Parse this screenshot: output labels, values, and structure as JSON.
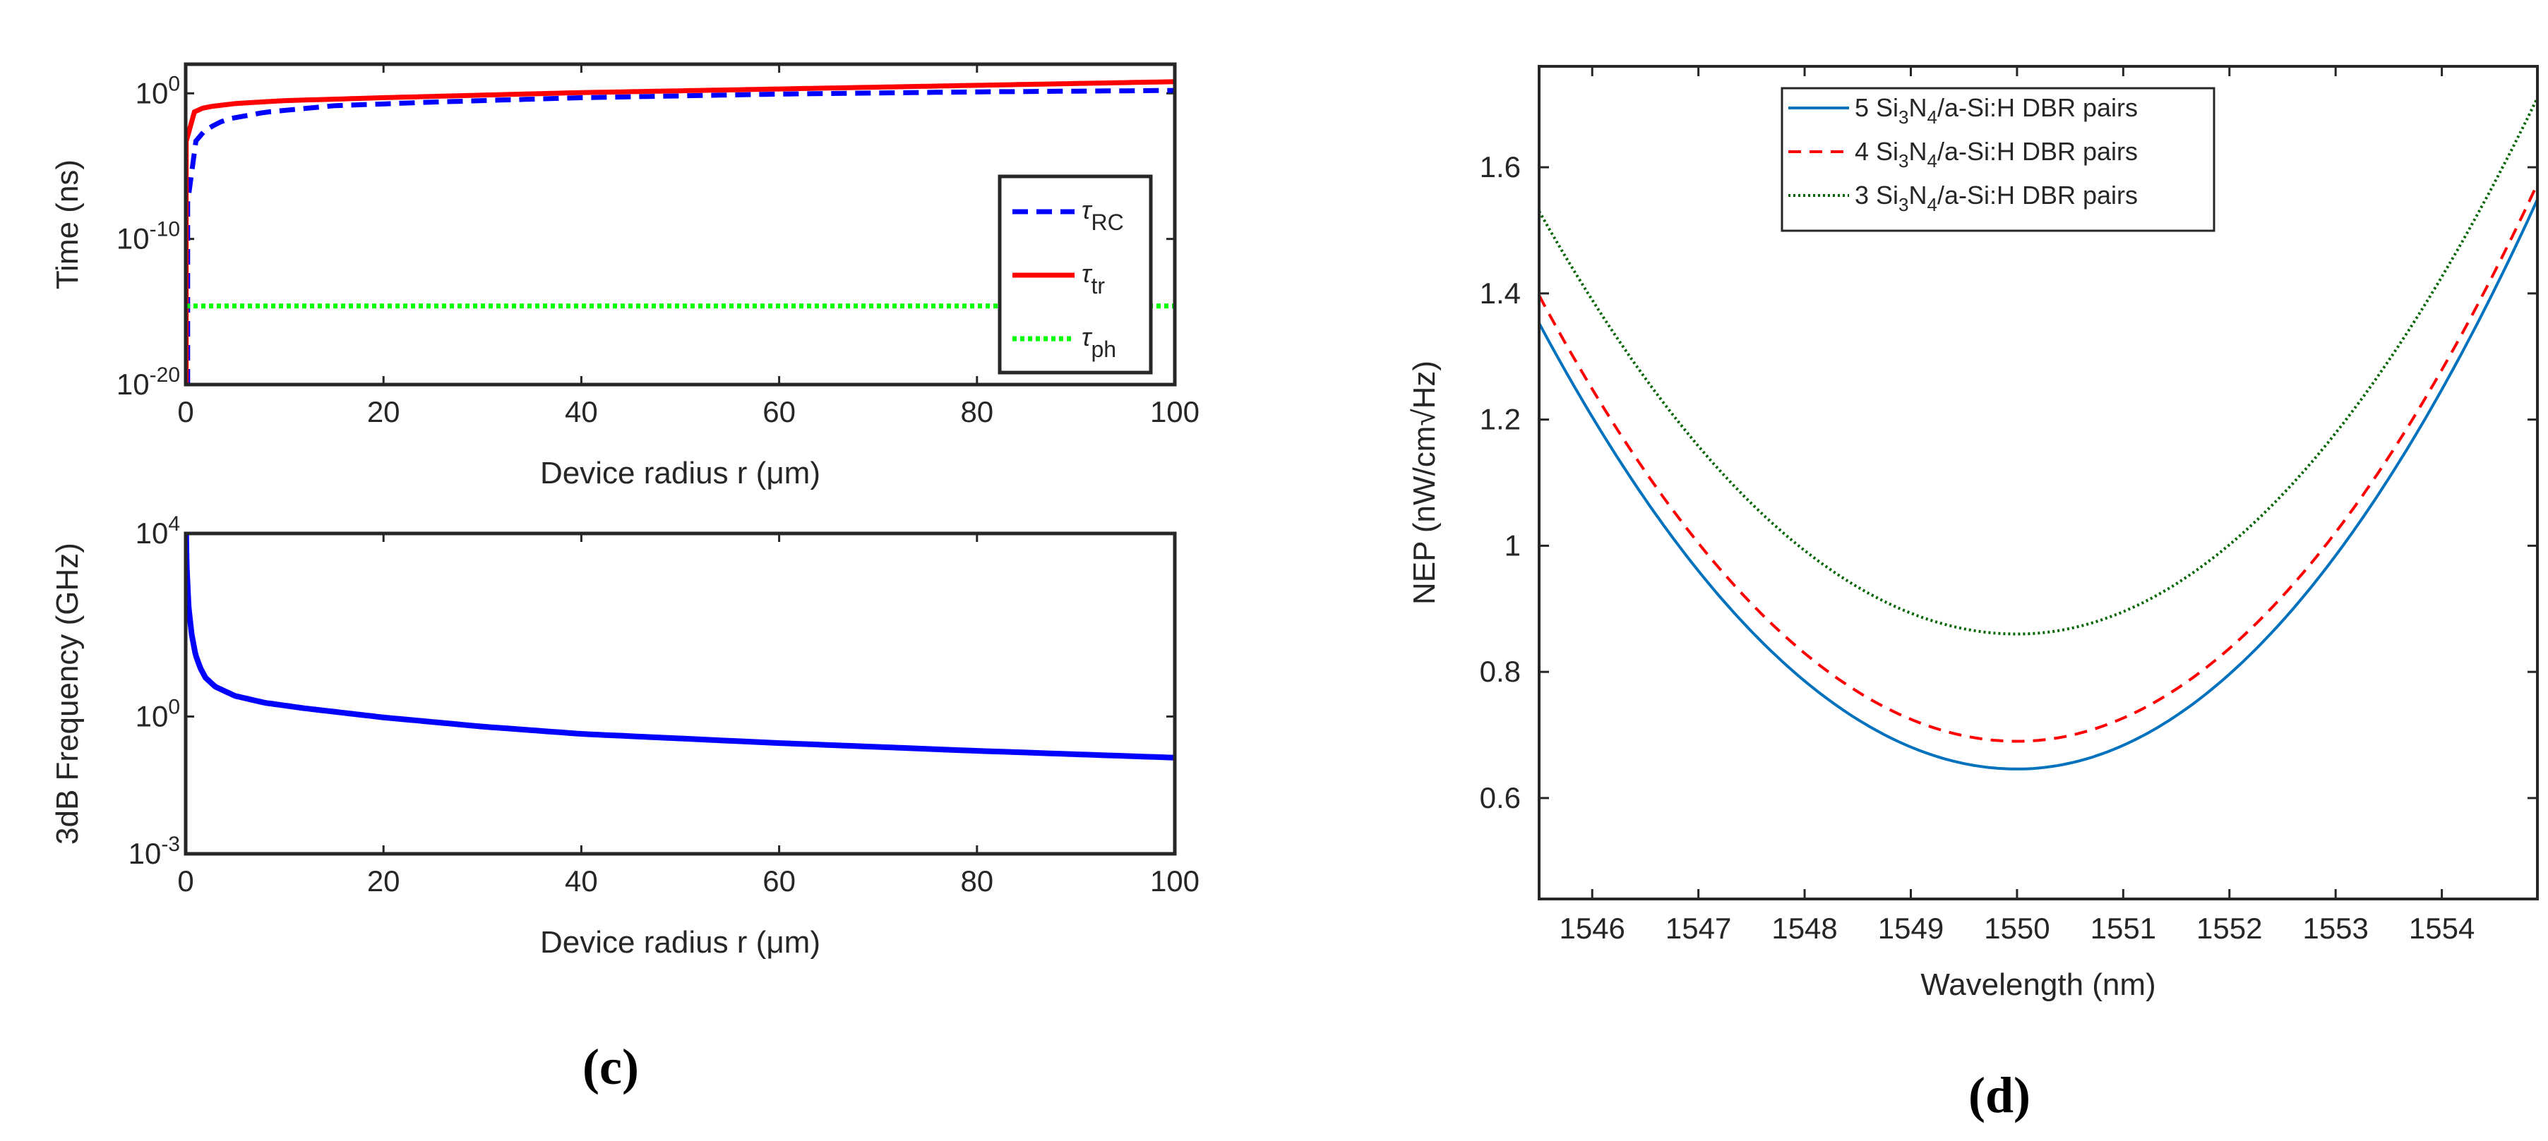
{
  "chart_data": [
    {
      "id": "c_top",
      "type": "line",
      "yscale": "log",
      "xlabel": "Device radius r (μm)",
      "ylabel": "Time (ns)",
      "xlim": [
        0,
        100
      ],
      "ylim_exp": [
        -20,
        2
      ],
      "x_ticks": [
        0,
        20,
        40,
        60,
        80,
        100
      ],
      "y_ticks": [
        {
          "exp": 0,
          "label": "10",
          "sup": "0"
        },
        {
          "exp": -10,
          "label": "10",
          "sup": "-10"
        },
        {
          "exp": -20,
          "label": "10",
          "sup": "-20"
        }
      ],
      "legend": [
        {
          "name": "τ",
          "sub": "RC",
          "color": "#0000ff",
          "dash": "dashed"
        },
        {
          "name": "τ",
          "sub": "tr",
          "color": "#ff0000",
          "dash": "solid"
        },
        {
          "name": "τ",
          "sub": "ph",
          "color": "#00ff00",
          "dash": "dotted"
        }
      ],
      "series": [
        {
          "name": "tau_RC",
          "color": "#0000ff",
          "dash": "dashed",
          "x": [
            0.2,
            0.5,
            1,
            2,
            4,
            8,
            15,
            25,
            40,
            60,
            80,
            100
          ],
          "log10_y": [
            -7.5,
            -5.0,
            -3.3,
            -2.5,
            -1.8,
            -1.3,
            -0.85,
            -0.6,
            -0.3,
            -0.05,
            0.1,
            0.2
          ]
        },
        {
          "name": "tau_tr",
          "color": "#ff0000",
          "dash": "solid",
          "x": [
            0.05,
            0.2,
            0.5,
            1,
            2,
            5,
            10,
            20,
            40,
            60,
            80,
            100
          ],
          "log10_y": [
            -3.3,
            -2.2,
            -1.5,
            -1.2,
            -0.95,
            -0.7,
            -0.5,
            -0.3,
            0.05,
            0.3,
            0.55,
            0.8
          ]
        },
        {
          "name": "tau_ph",
          "color": "#00ff00",
          "dash": "dotted",
          "x": [
            0,
            100
          ],
          "log10_y": [
            -14.6,
            -14.6
          ]
        }
      ]
    },
    {
      "id": "c_bottom",
      "type": "line",
      "yscale": "log",
      "xlabel": "Device radius r (μm)",
      "ylabel": "3dB Frequency (GHz)",
      "xlim": [
        0,
        100
      ],
      "ylim_exp": [
        -3,
        4
      ],
      "x_ticks": [
        0,
        20,
        40,
        60,
        80,
        100
      ],
      "y_ticks": [
        {
          "exp": 4,
          "label": "10",
          "sup": "4"
        },
        {
          "exp": 0,
          "label": "10",
          "sup": "0"
        },
        {
          "exp": -3,
          "label": "10",
          "sup": "-3"
        }
      ],
      "series": [
        {
          "name": "f3dB",
          "color": "#0000ff",
          "dash": "solid",
          "x": [
            0.05,
            0.1,
            0.3,
            0.6,
            1,
            1.5,
            2,
            3,
            5,
            8,
            12,
            20,
            30,
            40,
            60,
            80,
            100
          ],
          "log10_y": [
            4.0,
            3.3,
            2.4,
            1.8,
            1.35,
            1.05,
            0.85,
            0.65,
            0.45,
            0.3,
            0.18,
            -0.02,
            -0.22,
            -0.38,
            -0.58,
            -0.75,
            -0.9
          ]
        }
      ]
    },
    {
      "id": "d",
      "type": "line",
      "yscale": "linear",
      "xlabel": "Wavelength (nm)",
      "ylabel": "NEP (nW/cm√Hz)",
      "xlim": [
        1545.5,
        1554.9
      ],
      "ylim": [
        0.44,
        1.76
      ],
      "x_ticks": [
        1546,
        1547,
        1548,
        1549,
        1550,
        1551,
        1552,
        1553,
        1554
      ],
      "y_ticks": [
        0.6,
        0.8,
        1,
        1.2,
        1.4,
        1.6
      ],
      "legend": [
        {
          "pre": "5 Si",
          "s1": "3",
          "mid": "N",
          "s2": "4",
          "post": "/a-Si:H DBR pairs",
          "color": "#0072bd",
          "dash": "solid"
        },
        {
          "pre": "4 Si",
          "s1": "3",
          "mid": "N",
          "s2": "4",
          "post": "/a-Si:H DBR pairs",
          "color": "#ff0000",
          "dash": "dashed"
        },
        {
          "pre": "3 Si",
          "s1": "3",
          "mid": "N",
          "s2": "4",
          "post": "/a-Si:H DBR pairs",
          "color": "#006400",
          "dash": "dotted"
        }
      ],
      "series": [
        {
          "name": "5 pairs",
          "color": "#0072bd",
          "dash": "solid",
          "min_x": 1550,
          "min_y": 0.646,
          "a_left": 0.0349,
          "a_right": 0.0376
        },
        {
          "name": "4 pairs",
          "color": "#ff0000",
          "dash": "dashed",
          "min_x": 1550,
          "min_y": 0.69,
          "a_left": 0.0349,
          "a_right": 0.0368
        },
        {
          "name": "3 pairs",
          "color": "#006400",
          "dash": "dotted",
          "min_x": 1550,
          "min_y": 0.86,
          "a_left": 0.0331,
          "a_right": 0.0354
        }
      ]
    }
  ],
  "labels": {
    "c": "(c)",
    "d": "(d)"
  }
}
